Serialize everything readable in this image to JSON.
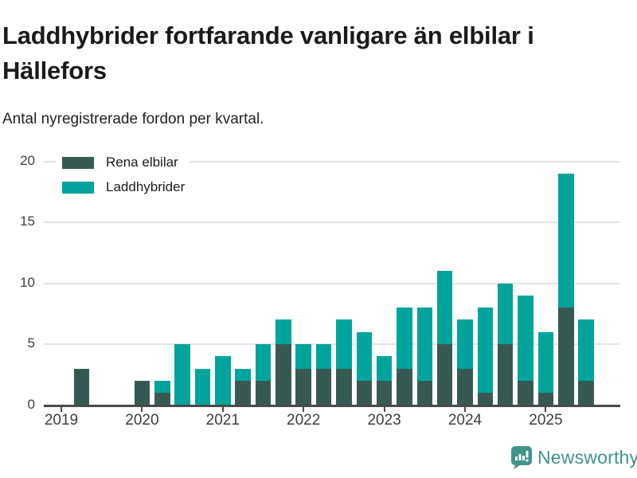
{
  "header": {
    "title": "Laddhybrider fortfarande vanligare än elbilar i Hällefors",
    "subtitle": "Antal nyregistrerade fordon per kvartal."
  },
  "legend": [
    {
      "label": "Rena elbilar",
      "color": "#365a53"
    },
    {
      "label": "Laddhybrider",
      "color": "#00a49c"
    }
  ],
  "footer": {
    "brand": "Newsworthy",
    "brand_color": "#3f948e"
  },
  "chart_data": {
    "type": "bar",
    "stacked": true,
    "title": "Laddhybrider fortfarande vanligare än elbilar i Hällefors",
    "subtitle": "Antal nyregistrerade fordon per kvartal.",
    "x": [
      "2019 Q1",
      "2019 Q2",
      "2019 Q3",
      "2019 Q4",
      "2020 Q1",
      "2020 Q2",
      "2020 Q3",
      "2020 Q4",
      "2021 Q1",
      "2021 Q2",
      "2021 Q3",
      "2021 Q4",
      "2022 Q1",
      "2022 Q2",
      "2022 Q3",
      "2022 Q4",
      "2023 Q1",
      "2023 Q2",
      "2023 Q3",
      "2023 Q4",
      "2024 Q1",
      "2024 Q2",
      "2024 Q3",
      "2024 Q4",
      "2025 Q1",
      "2025 Q2",
      "2025 Q3"
    ],
    "series": [
      {
        "name": "Rena elbilar",
        "color": "#365a53",
        "values": [
          0,
          3,
          0,
          0,
          2,
          1,
          0,
          0,
          0,
          2,
          2,
          5,
          3,
          3,
          3,
          2,
          2,
          3,
          2,
          5,
          3,
          1,
          5,
          2,
          1,
          8,
          2
        ]
      },
      {
        "name": "Laddhybrider",
        "color": "#00a49c",
        "values": [
          0,
          0,
          0,
          0,
          0,
          1,
          5,
          3,
          4,
          1,
          3,
          2,
          2,
          2,
          4,
          4,
          2,
          5,
          6,
          6,
          4,
          7,
          5,
          7,
          5,
          11,
          5
        ]
      }
    ],
    "totals": [
      0,
      3,
      0,
      0,
      2,
      2,
      5,
      3,
      4,
      3,
      5,
      7,
      5,
      5,
      7,
      6,
      4,
      8,
      8,
      11,
      7,
      8,
      10,
      9,
      6,
      19,
      7
    ],
    "x_tick_labels": [
      "2019",
      "2020",
      "2021",
      "2022",
      "2023",
      "2024",
      "2025"
    ],
    "y_ticks": [
      0,
      5,
      10,
      15,
      20
    ],
    "ylim": [
      0,
      20
    ],
    "grid": true,
    "legend_position": "top-left"
  }
}
